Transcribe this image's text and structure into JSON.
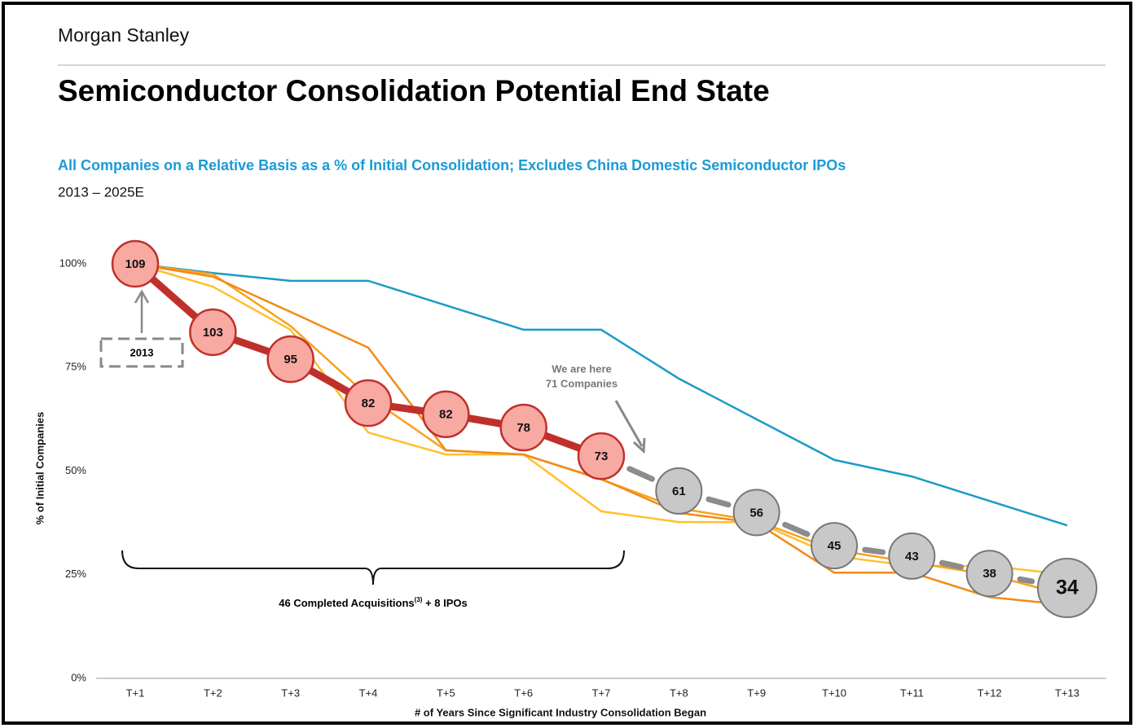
{
  "header": {
    "brand": "Morgan Stanley"
  },
  "chart_data": {
    "type": "line",
    "title": "Semiconductor Consolidation Potential End State",
    "subtitle": "All Companies on a Relative Basis as a % of Initial Consolidation; Excludes China Domestic Semiconductor IPOs",
    "period": "2013 – 2025E",
    "x_label": "# of Years Since Significant Industry Consolidation Began",
    "y_label": "% of Initial Companies",
    "categories": [
      "T+1",
      "T+2",
      "T+3",
      "T+4",
      "T+5",
      "T+6",
      "T+7",
      "T+8",
      "T+9",
      "T+10",
      "T+11",
      "T+12",
      "T+13"
    ],
    "ylim": [
      0,
      100
    ],
    "yticks": [
      {
        "value": 0,
        "label": "0%"
      },
      {
        "value": 25,
        "label": "25%"
      },
      {
        "value": 50,
        "label": "50%"
      },
      {
        "value": 75,
        "label": "75%"
      },
      {
        "value": 100,
        "label": "100%"
      }
    ],
    "series": [
      {
        "style": "line",
        "color": "#1a9bc7",
        "values": [
          100,
          97.8,
          95.9,
          95.9,
          90,
          84.1,
          84.1,
          72.3,
          62.5,
          52.7,
          48.7,
          42.8,
          36.9
        ]
      },
      {
        "style": "line",
        "color": "#ffc02e",
        "values": [
          100,
          94.5,
          84.1,
          59.3,
          54,
          54,
          40.3,
          37.7,
          37.7,
          29.5,
          27.1,
          27.1,
          25
        ]
      },
      {
        "style": "line",
        "color": "#f7a21b",
        "values": [
          100,
          97.5,
          85,
          68,
          55,
          54,
          48,
          41,
          38,
          31,
          28,
          25,
          20
        ]
      },
      {
        "style": "line",
        "color": "#f28a17",
        "values": [
          100,
          96.9,
          88.4,
          79.8,
          55,
          54,
          48.1,
          39.9,
          37.5,
          25.5,
          25.5,
          19.6,
          17.7
        ]
      },
      {
        "style": "circles",
        "color": "#c0302a",
        "fill": "#f8a9a2",
        "values": [
          100,
          83.5,
          77,
          66.4,
          63.7,
          60.5,
          53.6,
          null,
          null,
          null,
          null,
          null,
          null
        ],
        "counts": [
          109,
          103,
          95,
          82,
          82,
          78,
          73,
          null,
          null,
          null,
          null,
          null,
          null
        ]
      },
      {
        "style": "projection",
        "color": "#8c8c8c",
        "fill": "#c8c8c8",
        "values": [
          null,
          null,
          null,
          null,
          null,
          null,
          null,
          45.2,
          40,
          32,
          29.5,
          25.3,
          21.8
        ],
        "counts": [
          null,
          null,
          null,
          null,
          null,
          null,
          null,
          61,
          56,
          45,
          43,
          38,
          34
        ]
      }
    ],
    "annotations": {
      "start": "2013",
      "here_1": "We are here",
      "here_2": "71 Companies",
      "brace_1": "46 Completed Acquisitions",
      "brace_sup": "(3)",
      "brace_2": " + 8 IPOs"
    }
  }
}
